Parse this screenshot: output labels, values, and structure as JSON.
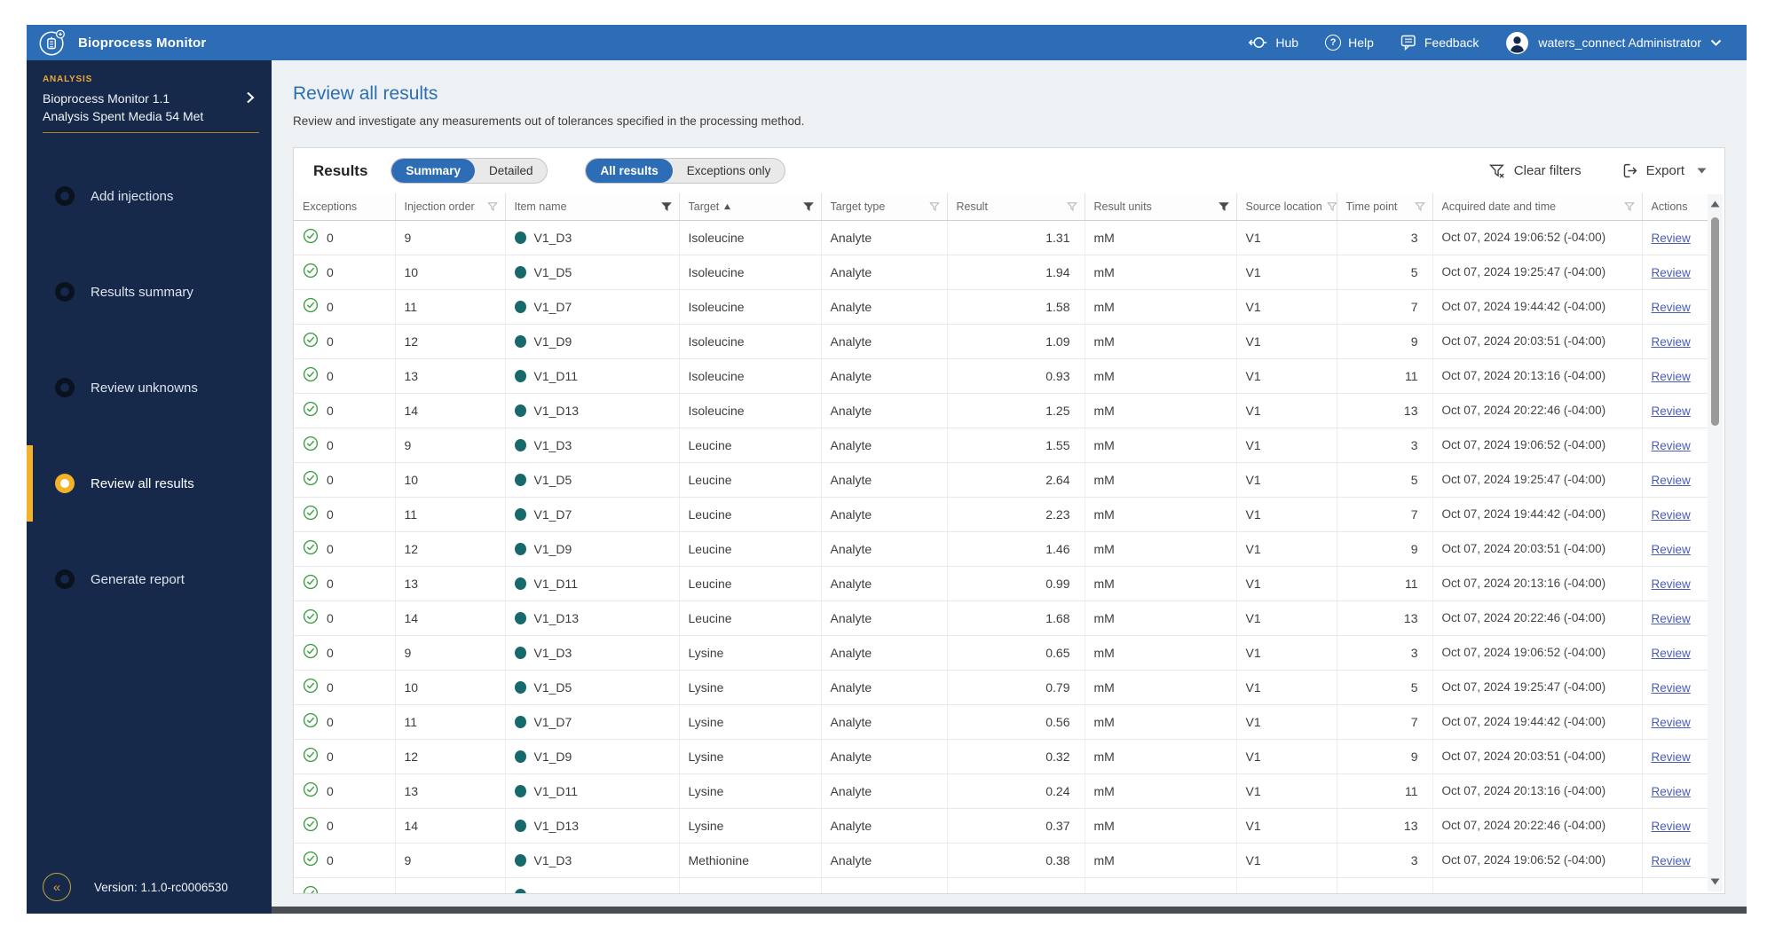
{
  "colors": {
    "accent_blue": "#2d6db5",
    "sidebar_navy": "#16294b",
    "highlight_gold": "#f3b229",
    "success_green": "#41a046",
    "item_teal": "#17696c",
    "link_blue": "#4a5cb8"
  },
  "topbar": {
    "app_title": "Bioprocess Monitor",
    "hub_label": "Hub",
    "help_label": "Help",
    "feedback_label": "Feedback",
    "user_label": "waters_connect Administrator"
  },
  "sidebar": {
    "section_label": "ANALYSIS",
    "app_name": "Bioprocess Monitor 1.1",
    "analysis_name": "Analysis Spent Media 54 Met",
    "items": [
      {
        "label": "Add injections",
        "active": false
      },
      {
        "label": "Results summary",
        "active": false
      },
      {
        "label": "Review unknowns",
        "active": false
      },
      {
        "label": "Review all results",
        "active": true
      },
      {
        "label": "Generate report",
        "active": false
      }
    ],
    "version_label": "Version: 1.1.0-rc0006530"
  },
  "main": {
    "page_title": "Review all results",
    "page_subtitle": "Review and investigate any measurements out of tolerances specified in the processing method.",
    "results_label": "Results",
    "view_toggle": {
      "options": [
        "Summary",
        "Detailed"
      ],
      "active": "Summary"
    },
    "scope_toggle": {
      "options": [
        "All results",
        "Exceptions only"
      ],
      "active": "All results"
    },
    "clear_filters_label": "Clear filters",
    "export_label": "Export"
  },
  "table": {
    "columns": [
      {
        "key": "exceptions",
        "label": "Exceptions",
        "filter": null,
        "sort": null,
        "cell_align": "left"
      },
      {
        "key": "injection_order",
        "label": "Injection order",
        "filter": "light",
        "sort": null,
        "cell_align": "left"
      },
      {
        "key": "item_name",
        "label": "Item name",
        "filter": "dark",
        "sort": null,
        "cell_align": "left"
      },
      {
        "key": "target",
        "label": "Target",
        "filter": "dark",
        "sort": "asc",
        "cell_align": "left"
      },
      {
        "key": "target_type",
        "label": "Target type",
        "filter": "light",
        "sort": null,
        "cell_align": "left"
      },
      {
        "key": "result",
        "label": "Result",
        "filter": "light",
        "sort": null,
        "cell_align": "right"
      },
      {
        "key": "result_units",
        "label": "Result units",
        "filter": "dark",
        "sort": null,
        "cell_align": "left"
      },
      {
        "key": "source_location",
        "label": "Source location",
        "filter": "light",
        "sort": null,
        "cell_align": "left"
      },
      {
        "key": "time_point",
        "label": "Time point",
        "filter": "light",
        "sort": null,
        "cell_align": "right"
      },
      {
        "key": "acquired",
        "label": "Acquired date and time",
        "filter": "light",
        "sort": null,
        "cell_align": "left"
      },
      {
        "key": "action",
        "label": "Actions",
        "filter": null,
        "sort": null,
        "cell_align": "left"
      }
    ],
    "rows": [
      {
        "exceptions": "0",
        "injection_order": "9",
        "item_name": "V1_D3",
        "target": "Isoleucine",
        "target_type": "Analyte",
        "result": "1.31",
        "result_units": "mM",
        "source_location": "V1",
        "time_point": "3",
        "acquired": "Oct 07, 2024 19:06:52 (-04:00)",
        "action": "Review"
      },
      {
        "exceptions": "0",
        "injection_order": "10",
        "item_name": "V1_D5",
        "target": "Isoleucine",
        "target_type": "Analyte",
        "result": "1.94",
        "result_units": "mM",
        "source_location": "V1",
        "time_point": "5",
        "acquired": "Oct 07, 2024 19:25:47 (-04:00)",
        "action": "Review"
      },
      {
        "exceptions": "0",
        "injection_order": "11",
        "item_name": "V1_D7",
        "target": "Isoleucine",
        "target_type": "Analyte",
        "result": "1.58",
        "result_units": "mM",
        "source_location": "V1",
        "time_point": "7",
        "acquired": "Oct 07, 2024 19:44:42 (-04:00)",
        "action": "Review"
      },
      {
        "exceptions": "0",
        "injection_order": "12",
        "item_name": "V1_D9",
        "target": "Isoleucine",
        "target_type": "Analyte",
        "result": "1.09",
        "result_units": "mM",
        "source_location": "V1",
        "time_point": "9",
        "acquired": "Oct 07, 2024 20:03:51 (-04:00)",
        "action": "Review"
      },
      {
        "exceptions": "0",
        "injection_order": "13",
        "item_name": "V1_D11",
        "target": "Isoleucine",
        "target_type": "Analyte",
        "result": "0.93",
        "result_units": "mM",
        "source_location": "V1",
        "time_point": "11",
        "acquired": "Oct 07, 2024 20:13:16 (-04:00)",
        "action": "Review"
      },
      {
        "exceptions": "0",
        "injection_order": "14",
        "item_name": "V1_D13",
        "target": "Isoleucine",
        "target_type": "Analyte",
        "result": "1.25",
        "result_units": "mM",
        "source_location": "V1",
        "time_point": "13",
        "acquired": "Oct 07, 2024 20:22:46 (-04:00)",
        "action": "Review"
      },
      {
        "exceptions": "0",
        "injection_order": "9",
        "item_name": "V1_D3",
        "target": "Leucine",
        "target_type": "Analyte",
        "result": "1.55",
        "result_units": "mM",
        "source_location": "V1",
        "time_point": "3",
        "acquired": "Oct 07, 2024 19:06:52 (-04:00)",
        "action": "Review"
      },
      {
        "exceptions": "0",
        "injection_order": "10",
        "item_name": "V1_D5",
        "target": "Leucine",
        "target_type": "Analyte",
        "result": "2.64",
        "result_units": "mM",
        "source_location": "V1",
        "time_point": "5",
        "acquired": "Oct 07, 2024 19:25:47 (-04:00)",
        "action": "Review"
      },
      {
        "exceptions": "0",
        "injection_order": "11",
        "item_name": "V1_D7",
        "target": "Leucine",
        "target_type": "Analyte",
        "result": "2.23",
        "result_units": "mM",
        "source_location": "V1",
        "time_point": "7",
        "acquired": "Oct 07, 2024 19:44:42 (-04:00)",
        "action": "Review"
      },
      {
        "exceptions": "0",
        "injection_order": "12",
        "item_name": "V1_D9",
        "target": "Leucine",
        "target_type": "Analyte",
        "result": "1.46",
        "result_units": "mM",
        "source_location": "V1",
        "time_point": "9",
        "acquired": "Oct 07, 2024 20:03:51 (-04:00)",
        "action": "Review"
      },
      {
        "exceptions": "0",
        "injection_order": "13",
        "item_name": "V1_D11",
        "target": "Leucine",
        "target_type": "Analyte",
        "result": "0.99",
        "result_units": "mM",
        "source_location": "V1",
        "time_point": "11",
        "acquired": "Oct 07, 2024 20:13:16 (-04:00)",
        "action": "Review"
      },
      {
        "exceptions": "0",
        "injection_order": "14",
        "item_name": "V1_D13",
        "target": "Leucine",
        "target_type": "Analyte",
        "result": "1.68",
        "result_units": "mM",
        "source_location": "V1",
        "time_point": "13",
        "acquired": "Oct 07, 2024 20:22:46 (-04:00)",
        "action": "Review"
      },
      {
        "exceptions": "0",
        "injection_order": "9",
        "item_name": "V1_D3",
        "target": "Lysine",
        "target_type": "Analyte",
        "result": "0.65",
        "result_units": "mM",
        "source_location": "V1",
        "time_point": "3",
        "acquired": "Oct 07, 2024 19:06:52 (-04:00)",
        "action": "Review"
      },
      {
        "exceptions": "0",
        "injection_order": "10",
        "item_name": "V1_D5",
        "target": "Lysine",
        "target_type": "Analyte",
        "result": "0.79",
        "result_units": "mM",
        "source_location": "V1",
        "time_point": "5",
        "acquired": "Oct 07, 2024 19:25:47 (-04:00)",
        "action": "Review"
      },
      {
        "exceptions": "0",
        "injection_order": "11",
        "item_name": "V1_D7",
        "target": "Lysine",
        "target_type": "Analyte",
        "result": "0.56",
        "result_units": "mM",
        "source_location": "V1",
        "time_point": "7",
        "acquired": "Oct 07, 2024 19:44:42 (-04:00)",
        "action": "Review"
      },
      {
        "exceptions": "0",
        "injection_order": "12",
        "item_name": "V1_D9",
        "target": "Lysine",
        "target_type": "Analyte",
        "result": "0.32",
        "result_units": "mM",
        "source_location": "V1",
        "time_point": "9",
        "acquired": "Oct 07, 2024 20:03:51 (-04:00)",
        "action": "Review"
      },
      {
        "exceptions": "0",
        "injection_order": "13",
        "item_name": "V1_D11",
        "target": "Lysine",
        "target_type": "Analyte",
        "result": "0.24",
        "result_units": "mM",
        "source_location": "V1",
        "time_point": "11",
        "acquired": "Oct 07, 2024 20:13:16 (-04:00)",
        "action": "Review"
      },
      {
        "exceptions": "0",
        "injection_order": "14",
        "item_name": "V1_D13",
        "target": "Lysine",
        "target_type": "Analyte",
        "result": "0.37",
        "result_units": "mM",
        "source_location": "V1",
        "time_point": "13",
        "acquired": "Oct 07, 2024 20:22:46 (-04:00)",
        "action": "Review"
      },
      {
        "exceptions": "0",
        "injection_order": "9",
        "item_name": "V1_D3",
        "target": "Methionine",
        "target_type": "Analyte",
        "result": "0.38",
        "result_units": "mM",
        "source_location": "V1",
        "time_point": "3",
        "acquired": "Oct 07, 2024 19:06:52 (-04:00)",
        "action": "Review"
      }
    ]
  }
}
